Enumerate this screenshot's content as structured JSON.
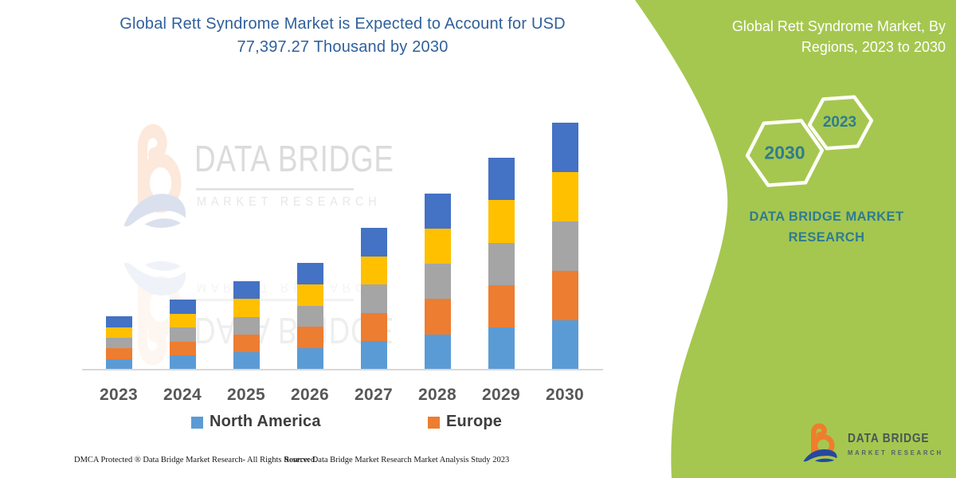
{
  "header": {
    "chart_title": "Global Rett Syndrome Market is Expected to Account for USD\n77,397.27 Thousand by 2030",
    "panel_title": "Global Rett Syndrome Market, By\nRegions, 2023 to 2030"
  },
  "side_panel": {
    "panel_color": "#a5c750",
    "hexagon_large_year": "2030",
    "hexagon_small_year": "2023",
    "brand_text": "DATA BRIDGE MARKET\nRESEARCH",
    "text_color": "#2f7b90"
  },
  "chart_data": {
    "type": "bar",
    "stacked": true,
    "title": "Global Rett Syndrome Market is Expected to Account for USD 77,397.27 Thousand by 2030",
    "unit": "USD Thousand",
    "categories": [
      "2023",
      "2024",
      "2025",
      "2026",
      "2027",
      "2028",
      "2029",
      "2030"
    ],
    "totals": [
      16650,
      21850,
      27650,
      33400,
      44350,
      55300,
      66350,
      77397.27
    ],
    "series": [
      {
        "name": "North America",
        "color": "#5b9bd5",
        "values": [
          3330,
          4370,
          5530,
          6680,
          8870,
          11060,
          13270,
          15479.45
        ]
      },
      {
        "name": "Europe",
        "color": "#ed7d31",
        "values": [
          3330,
          4370,
          5530,
          6680,
          8870,
          11060,
          13270,
          15479.45
        ]
      },
      {
        "name": "Unlabeled gray segment",
        "color": "#a5a5a5",
        "values": [
          3330,
          4370,
          5530,
          6680,
          8870,
          11060,
          13270,
          15479.45
        ]
      },
      {
        "name": "Unlabeled yellow segment",
        "color": "#ffc000",
        "values": [
          3330,
          4370,
          5530,
          6680,
          8870,
          11060,
          13270,
          15479.45
        ]
      },
      {
        "name": "Unlabeled dark-blue segment",
        "color": "#4472c4",
        "values": [
          3330,
          4370,
          5530,
          6680,
          8870,
          11060,
          13270,
          15479.45
        ]
      }
    ],
    "legend": [
      {
        "label": "North America",
        "color": "#5b9bd5"
      },
      {
        "label": "Europe",
        "color": "#ed7d31"
      }
    ],
    "legend_position": "bottom",
    "grid": false,
    "axis_line_color": "#d8d8d8",
    "ylim": [
      0,
      80000
    ]
  },
  "watermark": {
    "title": "DATA BRIDGE",
    "subtitle": "MARKET RESEARCH"
  },
  "footer": {
    "dmca": "DMCA Protected ® Data Bridge Market Research-  All Rights Reserved.",
    "source": "Source: Data Bridge Market Research  Market Analysis Study 2023",
    "logo_title": "DATA BRIDGE",
    "logo_subtitle": "MARKET RESEARCH"
  }
}
